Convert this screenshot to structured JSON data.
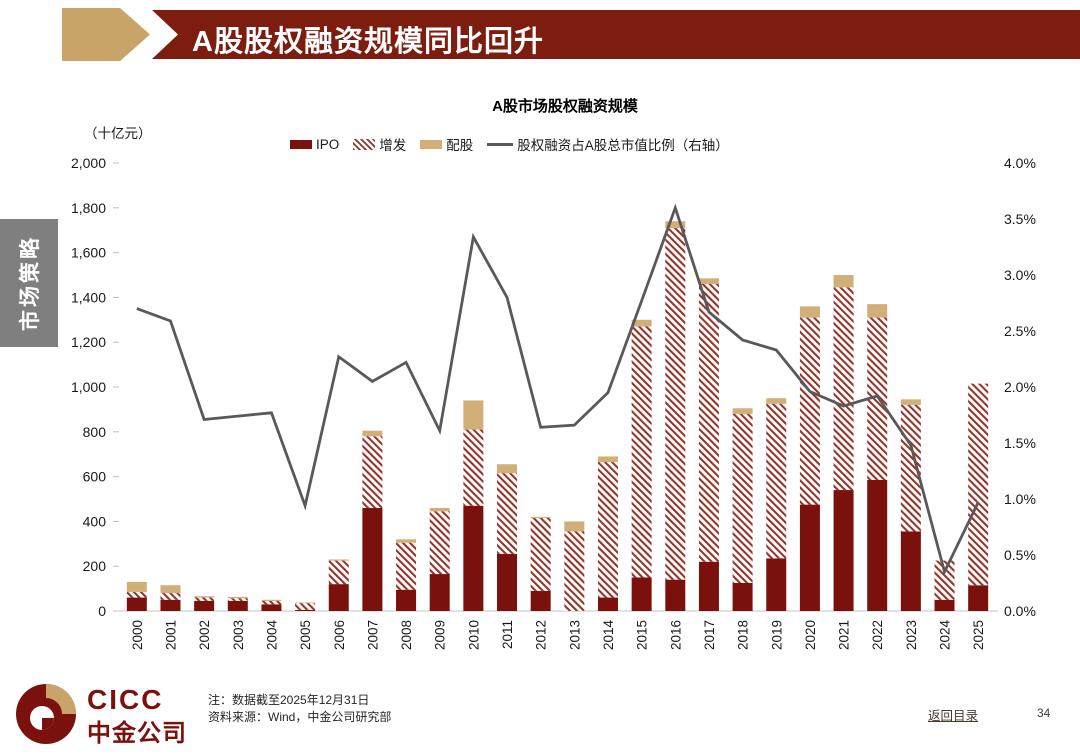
{
  "header": {
    "title": "A股股权融资规模同比回升"
  },
  "sidebar_tab": "市场策略",
  "colors": {
    "banner": "#7d1d10",
    "arrow_tan": "#c9a469",
    "ipo_red": "#7a110d",
    "hatch_red": "#96342a",
    "peigu_tan": "#d2ae78",
    "line_gray": "#595959",
    "sidebar_gray": "#7f7f7f"
  },
  "chart_data": {
    "type": "bar+line",
    "title": "A股市场股权融资规模",
    "categories": [
      2000,
      2001,
      2002,
      2003,
      2004,
      2005,
      2006,
      2007,
      2008,
      2009,
      2010,
      2011,
      2012,
      2013,
      2014,
      2015,
      2016,
      2017,
      2018,
      2019,
      2020,
      2021,
      2022,
      2023,
      2024,
      2025
    ],
    "series": [
      {
        "name": "IPO",
        "type": "bar",
        "stack": "equity",
        "color": "#7a110d",
        "values": [
          60,
          50,
          45,
          45,
          30,
          5,
          120,
          460,
          95,
          165,
          470,
          255,
          90,
          0,
          60,
          150,
          140,
          220,
          125,
          235,
          475,
          540,
          585,
          355,
          50,
          115
        ]
      },
      {
        "name": "增发",
        "type": "bar",
        "stack": "equity",
        "color": "#96342a",
        "pattern": "diagonal-hatch",
        "values": [
          25,
          30,
          15,
          12,
          15,
          30,
          105,
          320,
          210,
          280,
          340,
          360,
          325,
          355,
          605,
          1120,
          1570,
          1240,
          755,
          690,
          835,
          905,
          725,
          565,
          175,
          900
        ]
      },
      {
        "name": "配股",
        "type": "bar",
        "stack": "equity",
        "color": "#d2ae78",
        "values": [
          45,
          35,
          6,
          6,
          5,
          3,
          5,
          25,
          15,
          15,
          130,
          40,
          5,
          45,
          25,
          30,
          30,
          25,
          25,
          25,
          50,
          55,
          60,
          25,
          0,
          0
        ]
      },
      {
        "name": "股权融资占A股总市值比例（右轴）",
        "type": "line",
        "axis": "right",
        "color": "#595959",
        "values": [
          2.7,
          2.59,
          1.71,
          1.74,
          1.77,
          0.94,
          2.27,
          2.05,
          2.22,
          1.61,
          3.34,
          2.8,
          1.64,
          1.66,
          1.95,
          2.77,
          3.6,
          2.67,
          2.42,
          2.33,
          1.96,
          1.83,
          1.92,
          1.48,
          0.35,
          0.97
        ]
      }
    ],
    "left_axis": {
      "label": "（十亿元）",
      "min": 0,
      "max": 2000,
      "ticks": [
        "2,000",
        "1,800",
        "1,600",
        "1,400",
        "1,200",
        "1,000",
        "800",
        "600",
        "400",
        "200",
        "0"
      ]
    },
    "right_axis": {
      "min": 0,
      "max": 4,
      "ticks": [
        "4.0%",
        "3.5%",
        "3.0%",
        "2.5%",
        "2.0%",
        "1.5%",
        "1.0%",
        "0.5%",
        "0.0%"
      ]
    },
    "grid": false,
    "legend_position": "top"
  },
  "footer": {
    "logo_text_en": "CICC",
    "logo_text_cn": "中金公司",
    "note1": "注：数据截至2025年12月31日",
    "note2": "资料来源：Wind，中金公司研究部",
    "back_link": "返回目录",
    "page_number": "34"
  }
}
